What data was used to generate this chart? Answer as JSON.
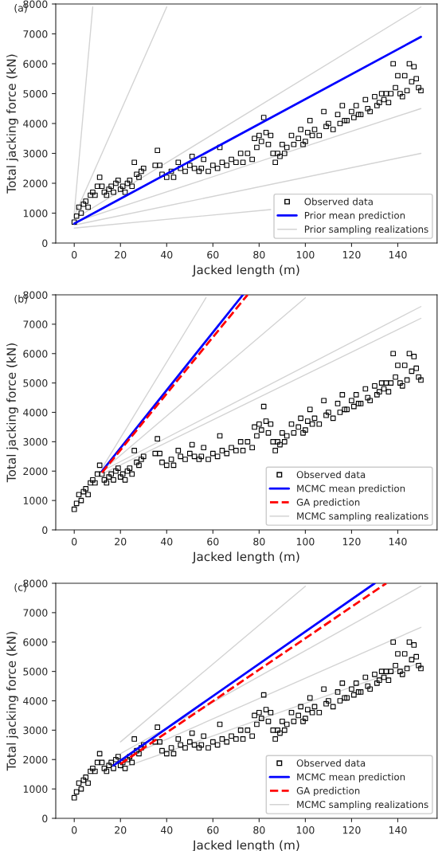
{
  "chart_data": [
    {
      "type": "line",
      "annotations": [
        "(a)"
      ],
      "xlabel": "Jacked length (m)",
      "ylabel": "Total jacking force (kN)",
      "xlim": [
        -8,
        157
      ],
      "xticks": [
        0,
        20,
        40,
        60,
        80,
        100,
        120,
        140
      ],
      "ylim": [
        0,
        8000
      ],
      "yticks": [
        0,
        1000,
        2000,
        3000,
        4000,
        5000,
        6000,
        7000,
        8000
      ],
      "grid": false,
      "legend": "bottom right",
      "series": [
        {
          "name": "Observed data",
          "type": "scatter",
          "marker": "square",
          "color": "#000000",
          "x": [
            0,
            1,
            2,
            3,
            4,
            5,
            6,
            7,
            8,
            9,
            10,
            11,
            12,
            13,
            14,
            15,
            16,
            17,
            18,
            19,
            20,
            21,
            22,
            23,
            24,
            25,
            26,
            27,
            28,
            29,
            30,
            35,
            36,
            37,
            38,
            40,
            42,
            43,
            45,
            46,
            48,
            50,
            51,
            52,
            54,
            55,
            56,
            58,
            60,
            62,
            63,
            64,
            66,
            68,
            70,
            72,
            73,
            75,
            77,
            78,
            79,
            80,
            81,
            82,
            83,
            84,
            85,
            86,
            87,
            88,
            89,
            90,
            91,
            92,
            94,
            95,
            97,
            98,
            99,
            100,
            101,
            102,
            103,
            104,
            106,
            108,
            109,
            110,
            112,
            114,
            115,
            116,
            117,
            118,
            120,
            121,
            122,
            123,
            124,
            126,
            127,
            128,
            130,
            131,
            132,
            133,
            134,
            135,
            136,
            137,
            138,
            139,
            140,
            141,
            142,
            143,
            144,
            145,
            146,
            147,
            148,
            149,
            150
          ],
          "values": [
            700,
            900,
            1200,
            1000,
            1300,
            1400,
            1200,
            1600,
            1700,
            1600,
            1900,
            2200,
            1900,
            1700,
            1600,
            1800,
            1900,
            1700,
            2000,
            2100,
            1800,
            1900,
            1700,
            2000,
            2100,
            1900,
            2700,
            2300,
            2200,
            2400,
            2500,
            2600,
            3100,
            2600,
            2300,
            2200,
            2400,
            2200,
            2700,
            2500,
            2400,
            2600,
            2900,
            2500,
            2400,
            2500,
            2800,
            2400,
            2600,
            2500,
            3200,
            2700,
            2600,
            2800,
            2700,
            3000,
            2700,
            3000,
            2800,
            3500,
            3200,
            3600,
            3400,
            4200,
            3700,
            3300,
            3600,
            3000,
            2700,
            3000,
            2900,
            3300,
            3000,
            3200,
            3600,
            3300,
            3500,
            3800,
            3300,
            3400,
            3700,
            4100,
            3600,
            3800,
            3600,
            4400,
            3900,
            4000,
            3800,
            4300,
            4000,
            4600,
            4100,
            4100,
            4400,
            4200,
            4600,
            4300,
            4300,
            4800,
            4500,
            4400,
            4900,
            4600,
            4700,
            5000,
            4800,
            5000,
            4700,
            5000,
            6000,
            5200,
            5600,
            5000,
            4900,
            5600,
            5100,
            6000,
            5400,
            5900,
            5500,
            5200,
            5100
          ]
        },
        {
          "name": "Prior mean prediction",
          "line_style": "solid",
          "color": "#0000ff",
          "x": [
            0,
            150
          ],
          "values": [
            650,
            6900
          ]
        },
        {
          "name": "Prior sampling realizations",
          "color": "#d3d3d3",
          "x": [
            0,
            150
          ],
          "values": [
            700,
            4500
          ]
        },
        {
          "color": "#d3d3d3",
          "x": [
            0,
            8
          ],
          "values": [
            1000,
            7900
          ]
        },
        {
          "color": "#d3d3d3",
          "x": [
            0,
            40
          ],
          "values": [
            900,
            7900
          ]
        },
        {
          "color": "#d3d3d3",
          "x": [
            0,
            150
          ],
          "values": [
            800,
            7900
          ]
        },
        {
          "color": "#d3d3d3",
          "x": [
            0,
            150
          ],
          "values": [
            600,
            3000
          ]
        },
        {
          "color": "#d3d3d3",
          "x": [
            0,
            85
          ],
          "values": [
            500,
            1120
          ]
        }
      ]
    },
    {
      "type": "line",
      "annotations": [
        "(b)"
      ],
      "xlabel": "Jacked length (m)",
      "ylabel": "Total jacking force (kN)",
      "xlim": [
        -8,
        157
      ],
      "xticks": [
        0,
        20,
        40,
        60,
        80,
        100,
        120,
        140
      ],
      "ylim": [
        0,
        8000
      ],
      "yticks": [
        0,
        1000,
        2000,
        3000,
        4000,
        5000,
        6000,
        7000,
        8000
      ],
      "grid": false,
      "legend": "bottom right",
      "series": [
        {
          "name": "Observed data",
          "type": "scatter",
          "marker": "square",
          "color": "#000000",
          "x": [
            0,
            1,
            2,
            3,
            4,
            5,
            6,
            7,
            8,
            9,
            10,
            11,
            12,
            13,
            14,
            15,
            16,
            17,
            18,
            19,
            20,
            21,
            22,
            23,
            24,
            25,
            26,
            27,
            28,
            29,
            30,
            35,
            36,
            37,
            38,
            40,
            42,
            43,
            45,
            46,
            48,
            50,
            51,
            52,
            54,
            55,
            56,
            58,
            60,
            62,
            63,
            64,
            66,
            68,
            70,
            72,
            73,
            75,
            77,
            78,
            79,
            80,
            81,
            82,
            83,
            84,
            85,
            86,
            87,
            88,
            89,
            90,
            91,
            92,
            94,
            95,
            97,
            98,
            99,
            100,
            101,
            102,
            103,
            104,
            106,
            108,
            109,
            110,
            112,
            114,
            115,
            116,
            117,
            118,
            120,
            121,
            122,
            123,
            124,
            126,
            127,
            128,
            130,
            131,
            132,
            133,
            134,
            135,
            136,
            137,
            138,
            139,
            140,
            141,
            142,
            143,
            144,
            145,
            146,
            147,
            148,
            149,
            150
          ],
          "values": [
            700,
            900,
            1200,
            1000,
            1300,
            1400,
            1200,
            1600,
            1700,
            1600,
            1900,
            2200,
            1900,
            1700,
            1600,
            1800,
            1900,
            1700,
            2000,
            2100,
            1800,
            1900,
            1700,
            2000,
            2100,
            1900,
            2700,
            2300,
            2200,
            2400,
            2500,
            2600,
            3100,
            2600,
            2300,
            2200,
            2400,
            2200,
            2700,
            2500,
            2400,
            2600,
            2900,
            2500,
            2400,
            2500,
            2800,
            2400,
            2600,
            2500,
            3200,
            2700,
            2600,
            2800,
            2700,
            3000,
            2700,
            3000,
            2800,
            3500,
            3200,
            3600,
            3400,
            4200,
            3700,
            3300,
            3600,
            3000,
            2700,
            3000,
            2900,
            3300,
            3000,
            3200,
            3600,
            3300,
            3500,
            3800,
            3300,
            3400,
            3700,
            4100,
            3600,
            3800,
            3600,
            4400,
            3900,
            4000,
            3800,
            4300,
            4000,
            4600,
            4100,
            4100,
            4400,
            4200,
            4600,
            4300,
            4300,
            4800,
            4500,
            4400,
            4900,
            4600,
            4700,
            5000,
            4800,
            5000,
            4700,
            5000,
            6000,
            5200,
            5600,
            5000,
            4900,
            5600,
            5100,
            6000,
            5400,
            5900,
            5500,
            5200,
            5100
          ]
        },
        {
          "name": "MCMC mean prediction",
          "line_style": "solid",
          "color": "#0000ff",
          "x": [
            12,
            73
          ],
          "values": [
            2000,
            8000
          ]
        },
        {
          "name": "GA prediction",
          "line_style": "dashed",
          "color": "#ff0000",
          "x": [
            12,
            75
          ],
          "values": [
            1950,
            8000
          ]
        },
        {
          "name": "MCMC sampling realizations",
          "color": "#d3d3d3",
          "x": [
            12,
            150
          ],
          "values": [
            2000,
            7600
          ]
        },
        {
          "color": "#d3d3d3",
          "x": [
            12,
            57
          ],
          "values": [
            2100,
            7900
          ]
        },
        {
          "color": "#d3d3d3",
          "x": [
            12,
            100
          ],
          "values": [
            2000,
            7900
          ]
        },
        {
          "color": "#d3d3d3",
          "x": [
            12,
            150
          ],
          "values": [
            1900,
            7200
          ]
        }
      ]
    },
    {
      "type": "line",
      "annotations": [
        "(c)"
      ],
      "xlabel": "Jacked length (m)",
      "ylabel": "Total jacking force (kN)",
      "xlim": [
        -8,
        157
      ],
      "xticks": [
        0,
        20,
        40,
        60,
        80,
        100,
        120,
        140
      ],
      "ylim": [
        0,
        8000
      ],
      "yticks": [
        0,
        1000,
        2000,
        3000,
        4000,
        5000,
        6000,
        7000,
        8000
      ],
      "grid": false,
      "legend": "bottom right",
      "series": [
        {
          "name": "Observed data",
          "type": "scatter",
          "marker": "square",
          "color": "#000000",
          "x": [
            0,
            1,
            2,
            3,
            4,
            5,
            6,
            7,
            8,
            9,
            10,
            11,
            12,
            13,
            14,
            15,
            16,
            17,
            18,
            19,
            20,
            21,
            22,
            23,
            24,
            25,
            26,
            27,
            28,
            29,
            30,
            35,
            36,
            37,
            38,
            40,
            42,
            43,
            45,
            46,
            48,
            50,
            51,
            52,
            54,
            55,
            56,
            58,
            60,
            62,
            63,
            64,
            66,
            68,
            70,
            72,
            73,
            75,
            77,
            78,
            79,
            80,
            81,
            82,
            83,
            84,
            85,
            86,
            87,
            88,
            89,
            90,
            91,
            92,
            94,
            95,
            97,
            98,
            99,
            100,
            101,
            102,
            103,
            104,
            106,
            108,
            109,
            110,
            112,
            114,
            115,
            116,
            117,
            118,
            120,
            121,
            122,
            123,
            124,
            126,
            127,
            128,
            130,
            131,
            132,
            133,
            134,
            135,
            136,
            137,
            138,
            139,
            140,
            141,
            142,
            143,
            144,
            145,
            146,
            147,
            148,
            149,
            150
          ],
          "values": [
            700,
            900,
            1200,
            1000,
            1300,
            1400,
            1200,
            1600,
            1700,
            1600,
            1900,
            2200,
            1900,
            1700,
            1600,
            1800,
            1900,
            1700,
            2000,
            2100,
            1800,
            1900,
            1700,
            2000,
            2100,
            1900,
            2700,
            2300,
            2200,
            2400,
            2500,
            2600,
            3100,
            2600,
            2300,
            2200,
            2400,
            2200,
            2700,
            2500,
            2400,
            2600,
            2900,
            2500,
            2400,
            2500,
            2800,
            2400,
            2600,
            2500,
            3200,
            2700,
            2600,
            2800,
            2700,
            3000,
            2700,
            3000,
            2800,
            3500,
            3200,
            3600,
            3400,
            4200,
            3700,
            3300,
            3600,
            3000,
            2700,
            3000,
            2900,
            3300,
            3000,
            3200,
            3600,
            3300,
            3500,
            3800,
            3300,
            3400,
            3700,
            4100,
            3600,
            3800,
            3600,
            4400,
            3900,
            4000,
            3800,
            4300,
            4000,
            4600,
            4100,
            4100,
            4400,
            4200,
            4600,
            4300,
            4300,
            4800,
            4500,
            4400,
            4900,
            4600,
            4700,
            5000,
            4800,
            5000,
            4700,
            5000,
            6000,
            5200,
            5600,
            5000,
            4900,
            5600,
            5100,
            6000,
            5400,
            5900,
            5500,
            5200,
            5100
          ]
        },
        {
          "name": "MCMC mean prediction",
          "line_style": "solid",
          "color": "#0000ff",
          "x": [
            17,
            130
          ],
          "values": [
            1800,
            8000
          ]
        },
        {
          "name": "GA prediction",
          "line_style": "dashed",
          "color": "#ff0000",
          "x": [
            20,
            135
          ],
          "values": [
            1850,
            8000
          ]
        },
        {
          "name": "MCMC sampling realizations",
          "color": "#d3d3d3",
          "x": [
            20,
            150
          ],
          "values": [
            2000,
            6500
          ]
        },
        {
          "color": "#d3d3d3",
          "x": [
            20,
            100
          ],
          "values": [
            2600,
            7900
          ]
        },
        {
          "color": "#d3d3d3",
          "x": [
            20,
            150
          ],
          "values": [
            2200,
            7900
          ]
        },
        {
          "color": "#d3d3d3",
          "x": [
            20,
            150
          ],
          "values": [
            1700,
            5300
          ]
        }
      ]
    }
  ]
}
